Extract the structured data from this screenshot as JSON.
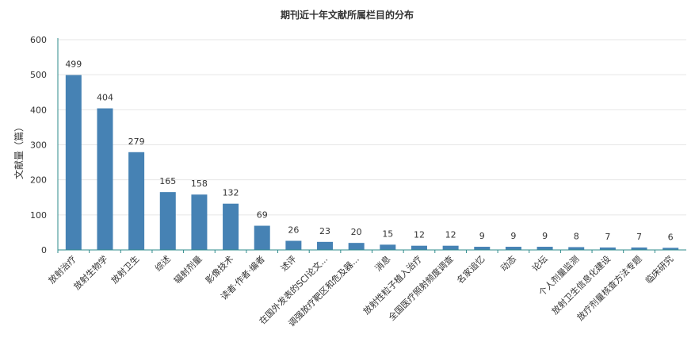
{
  "chart_data": {
    "type": "bar",
    "title": "期刊近十年文献所属栏目的分布",
    "xlabel": "",
    "ylabel": "文献量（篇）",
    "ylim": [
      0,
      600
    ],
    "yticks": [
      0,
      100,
      200,
      300,
      400,
      500,
      600
    ],
    "grid": true,
    "bar_color": "#4682b4",
    "categories": [
      "放射治疗",
      "放射生物学",
      "放射卫生",
      "综述",
      "辐射剂量",
      "影像技术",
      "读者·作者·编者",
      "述评",
      "在国外发表的SCI论文...",
      "调强放疗靶区和危及器...",
      "消息",
      "放射性粒子植入治疗",
      "全国医疗照射频度调查",
      "名家追忆",
      "动态",
      "论坛",
      "个人剂量监测",
      "放射卫生信息化建设",
      "放疗剂量核查方法专题",
      "临床研究"
    ],
    "values": [
      499,
      404,
      279,
      165,
      158,
      132,
      69,
      26,
      23,
      20,
      15,
      12,
      12,
      9,
      9,
      9,
      8,
      7,
      7,
      6
    ]
  }
}
